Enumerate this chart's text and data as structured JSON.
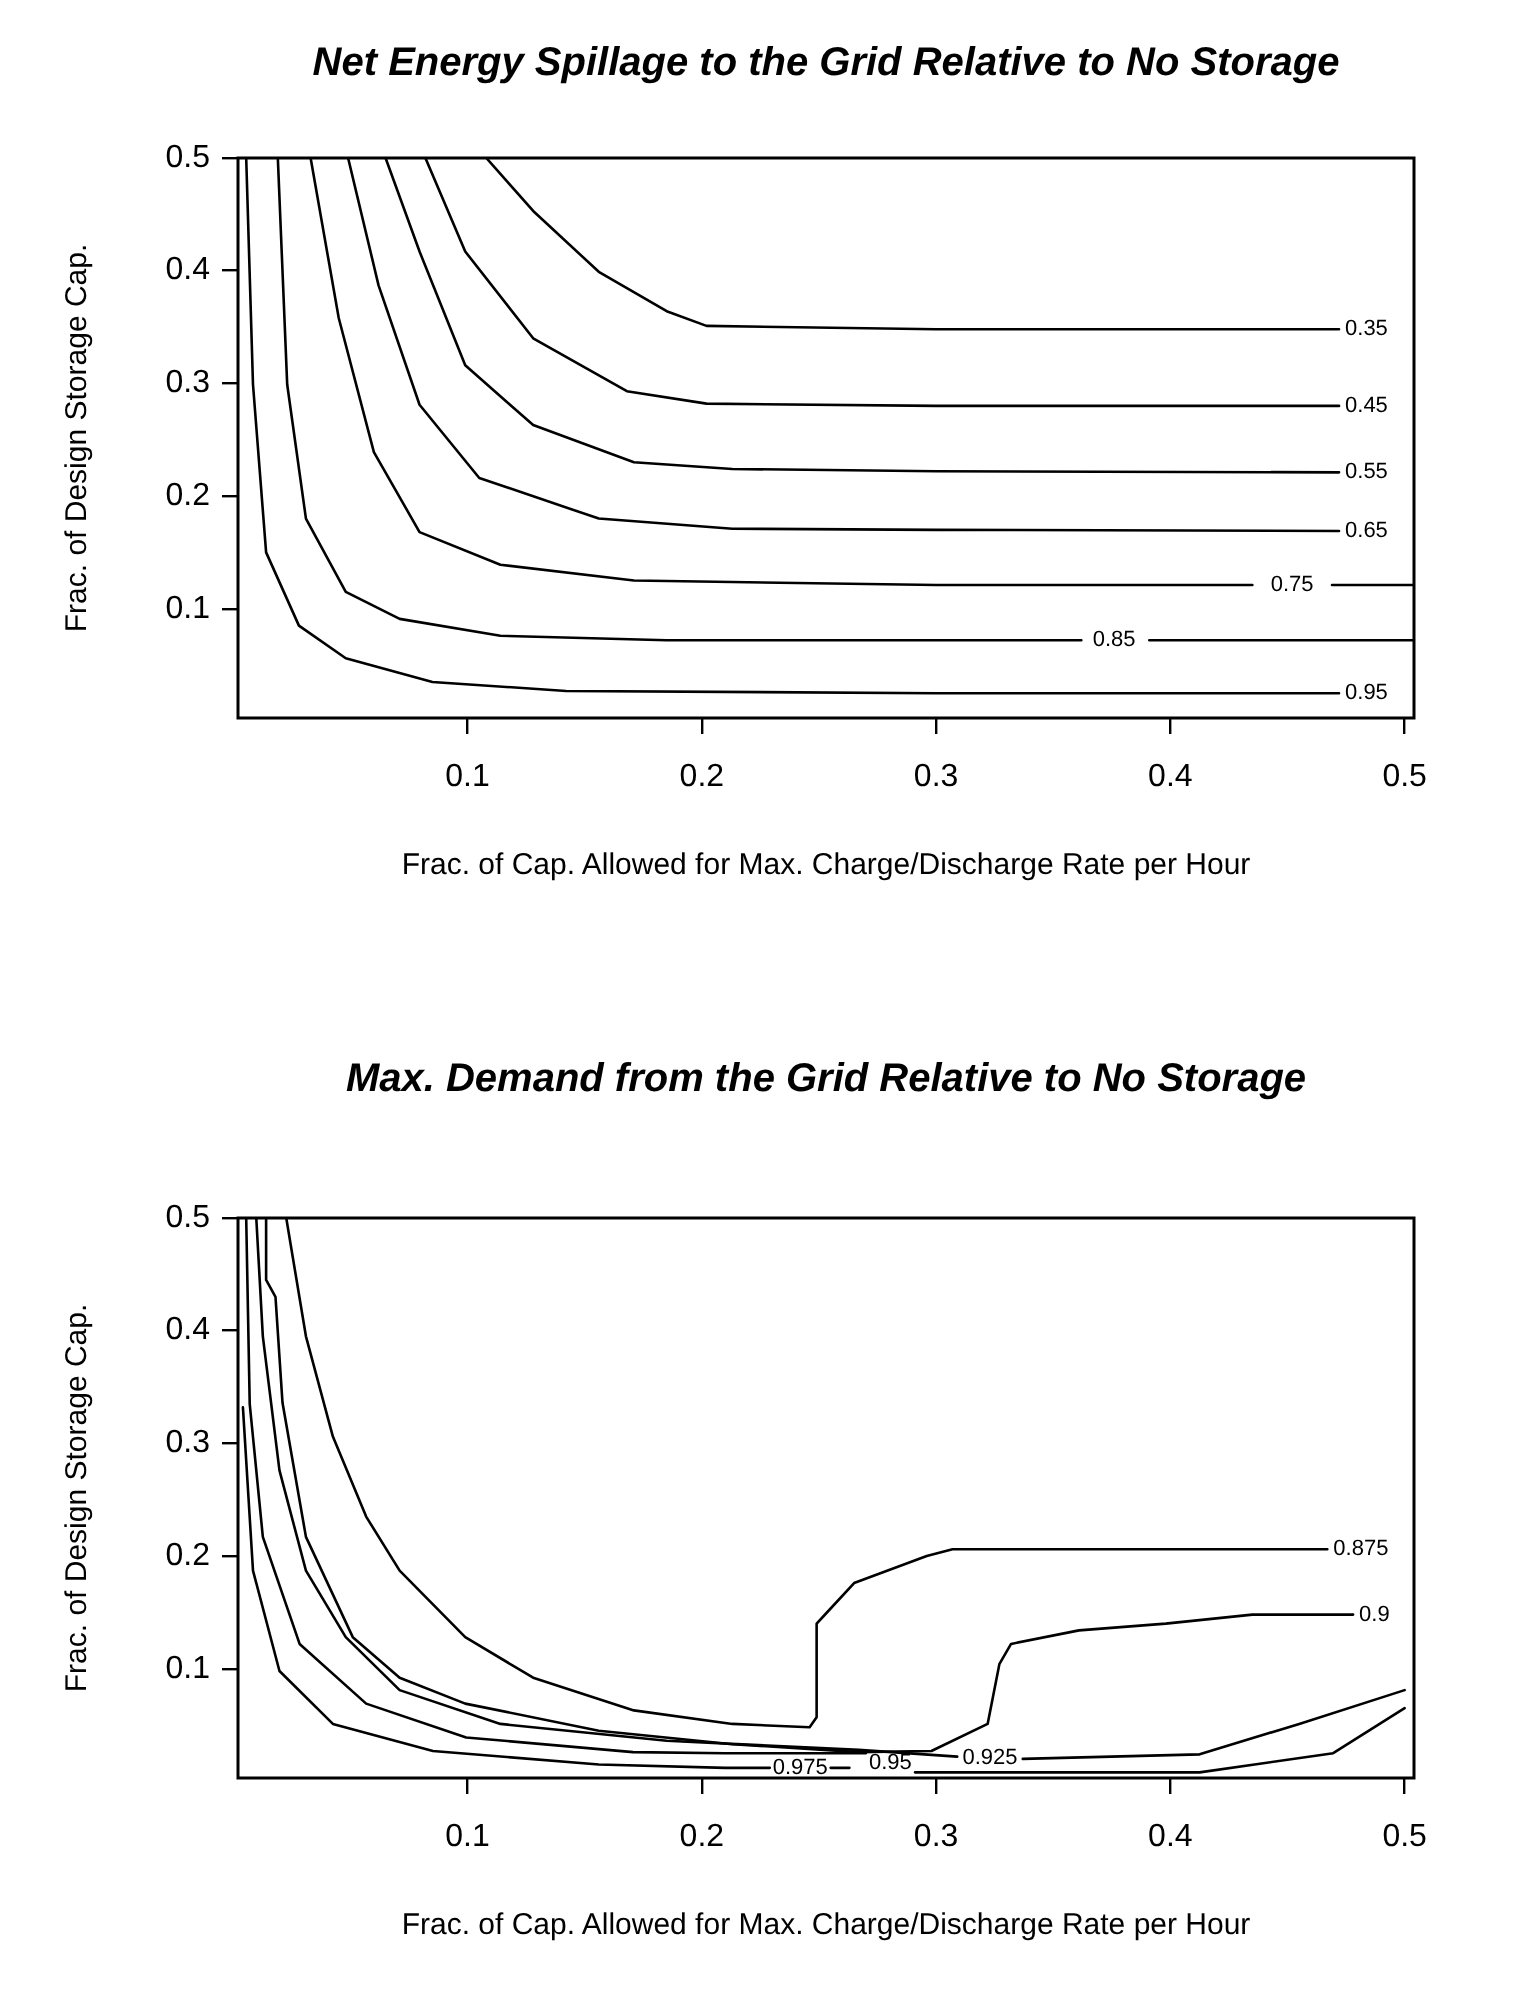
{
  "chart_data": [
    {
      "type": "line",
      "title": "Net Energy Spillage to the Grid Relative to No Storage",
      "xlabel": "Frac. of Cap. Allowed for Max. Charge/Discharge Rate per Hour",
      "ylabel": "Frac. of Design Storage Cap.",
      "xlim": [
        0.002,
        0.504
      ],
      "ylim": [
        0.003,
        0.5
      ],
      "xticks": [
        0.1,
        0.2,
        0.3,
        0.4,
        0.5
      ],
      "yticks": [
        0.1,
        0.2,
        0.3,
        0.4,
        0.5
      ],
      "series": [
        {
          "name": "0.35",
          "color": "#000000",
          "x": [
            0.108,
            0.128,
            0.156,
            0.185,
            0.202,
            0.3,
            0.472
          ],
          "values": [
            0.5,
            0.453,
            0.399,
            0.364,
            0.351,
            0.348,
            0.348
          ]
        },
        {
          "name": "0.45",
          "color": "#000000",
          "x": [
            0.082,
            0.099,
            0.128,
            0.168,
            0.202,
            0.3,
            0.472
          ],
          "values": [
            0.5,
            0.417,
            0.34,
            0.293,
            0.282,
            0.28,
            0.28
          ]
        },
        {
          "name": "0.55",
          "color": "#000000",
          "x": [
            0.065,
            0.0795,
            0.099,
            0.128,
            0.171,
            0.213,
            0.3,
            0.472
          ],
          "values": [
            0.5,
            0.417,
            0.316,
            0.263,
            0.23,
            0.224,
            0.222,
            0.221
          ]
        },
        {
          "name": "0.65",
          "color": "#000000",
          "x": [
            0.049,
            0.062,
            0.0795,
            0.105,
            0.156,
            0.213,
            0.3,
            0.472
          ],
          "values": [
            0.5,
            0.387,
            0.281,
            0.216,
            0.18,
            0.171,
            0.17,
            0.169
          ]
        },
        {
          "name": "0.75",
          "color": "#000000",
          "x": [
            0.033,
            0.045,
            0.06,
            0.0795,
            0.114,
            0.171,
            0.3,
            0.435,
            0.452,
            0.469,
            0.504
          ],
          "values": [
            0.5,
            0.358,
            0.239,
            0.168,
            0.139,
            0.125,
            0.121,
            0.121,
            null,
            0.121,
            0.121
          ]
        },
        {
          "name": "0.85",
          "color": "#000000",
          "x": [
            0.019,
            0.023,
            0.031,
            0.048,
            0.071,
            0.114,
            0.185,
            0.3,
            0.362,
            0.376,
            0.391,
            0.504
          ],
          "values": [
            0.5,
            0.299,
            0.18,
            0.115,
            0.091,
            0.076,
            0.072,
            0.072,
            0.072,
            null,
            0.072,
            0.072
          ]
        },
        {
          "name": "0.95",
          "color": "#000000",
          "x": [
            0.0055,
            0.0084,
            0.014,
            0.028,
            0.048,
            0.085,
            0.142,
            0.3,
            0.472
          ],
          "values": [
            0.5,
            0.299,
            0.15,
            0.085,
            0.056,
            0.035,
            0.027,
            0.025,
            0.025
          ]
        }
      ]
    },
    {
      "type": "line",
      "title": "Max. Demand from the Grid Relative to No Storage",
      "xlabel": "Frac. of Cap. Allowed for Max. Charge/Discharge Rate per Hour",
      "ylabel": "Frac. of Design Storage Cap.",
      "xlim": [
        0.002,
        0.504
      ],
      "ylim": [
        0.003,
        0.5
      ],
      "xticks": [
        0.1,
        0.2,
        0.3,
        0.4,
        0.5
      ],
      "yticks": [
        0.1,
        0.2,
        0.3,
        0.4,
        0.5
      ],
      "series": [
        {
          "name": "0.875",
          "color": "#000000",
          "x": [
            0.0226,
            0.031,
            0.0425,
            0.0567,
            0.071,
            0.099,
            0.128,
            0.171,
            0.213,
            0.246,
            0.249,
            0.249,
            0.253,
            0.265,
            0.296,
            0.307,
            0.467
          ],
          "values": [
            0.5,
            0.395,
            0.306,
            0.235,
            0.187,
            0.128,
            0.092,
            0.063,
            0.051,
            0.048,
            0.057,
            0.14,
            0.149,
            0.176,
            0.2,
            0.206,
            0.206
          ]
        },
        {
          "name": "0.9",
          "color": "#000000",
          "x": [
            0.014,
            0.014,
            0.018,
            0.021,
            0.031,
            0.051,
            0.071,
            0.099,
            0.156,
            0.213,
            0.267,
            0.298,
            0.322,
            0.327,
            0.332,
            0.361,
            0.398,
            0.435,
            0.478
          ],
          "values": [
            0.5,
            0.445,
            0.43,
            0.336,
            0.217,
            0.128,
            0.092,
            0.069,
            0.045,
            0.033,
            0.026,
            0.027,
            0.051,
            0.104,
            0.122,
            0.134,
            0.14,
            0.148,
            0.148
          ]
        },
        {
          "name": "0.925",
          "color": "#000000",
          "x": [
            0.0098,
            0.0126,
            0.0197,
            0.031,
            0.048,
            0.071,
            0.114,
            0.185,
            0.267,
            0.309,
            0.323,
            0.337,
            0.4125,
            0.455,
            0.5
          ],
          "values": [
            0.5,
            0.395,
            0.276,
            0.187,
            0.128,
            0.081,
            0.051,
            0.036,
            0.028,
            0.022,
            null,
            0.02,
            0.024,
            0.051,
            0.081
          ]
        },
        {
          "name": "0.95",
          "color": "#000000",
          "x": [
            0.0055,
            0.007,
            0.0126,
            0.0283,
            0.0567,
            0.0994,
            0.1706,
            0.21,
            0.27,
            0.2805,
            0.291,
            0.4125,
            0.4695,
            0.5
          ],
          "values": [
            0.5,
            0.335,
            0.217,
            0.122,
            0.069,
            0.039,
            0.026,
            0.025,
            0.025,
            null,
            0.008,
            0.008,
            0.025,
            0.065
          ]
        },
        {
          "name": "0.975",
          "color": "#000000",
          "x": [
            0.0041,
            0.0084,
            0.0197,
            0.0425,
            0.0852,
            0.156,
            0.21,
            0.229,
            0.242,
            0.255,
            0.263
          ],
          "values": [
            0.332,
            0.187,
            0.098,
            0.051,
            0.027,
            0.015,
            0.012,
            0.012,
            null,
            0.012,
            0.012
          ]
        }
      ]
    }
  ]
}
